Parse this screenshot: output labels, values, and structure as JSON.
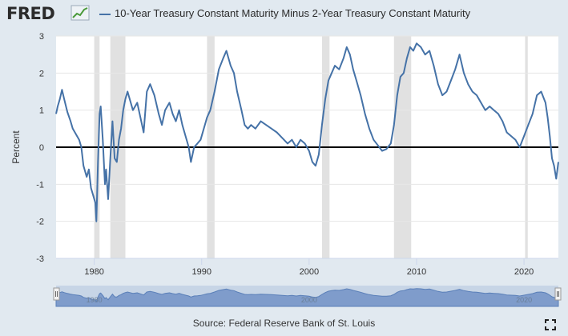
{
  "header": {
    "logo_text": "FRED",
    "series_title": "10-Year Treasury Constant Maturity Minus 2-Year Treasury Constant Maturity"
  },
  "footer": {
    "source": "Source: Federal Reserve Bank of St. Louis"
  },
  "navigator": {
    "labels": [
      "1980",
      "2000",
      "2020"
    ]
  },
  "colors": {
    "series": "#4572a7",
    "recession": "#e1e1e1",
    "background": "#e1e9f0",
    "plot_background": "#ffffff",
    "zero_line": "#000000"
  },
  "chart_data": {
    "type": "line",
    "title": "10-Year Treasury Constant Maturity Minus 2-Year Treasury Constant Maturity",
    "xlabel": "",
    "ylabel": "Percent",
    "xlim": [
      1976.45,
      2023.2
    ],
    "ylim": [
      -3,
      3
    ],
    "x_ticks": [
      1980,
      1990,
      2000,
      2010,
      2020
    ],
    "y_ticks": [
      -3,
      -2,
      -1,
      0,
      1,
      2,
      3
    ],
    "grid": "horizontal",
    "zero_line": true,
    "recessions": [
      [
        1980.0,
        1980.5
      ],
      [
        1981.5,
        1982.9
      ],
      [
        1990.5,
        1991.2
      ],
      [
        2001.2,
        2001.9
      ],
      [
        2007.9,
        2009.5
      ],
      [
        2020.1,
        2020.35
      ]
    ],
    "series": [
      {
        "x": [
          1976.45,
          1976.6,
          1976.8,
          1977.0,
          1977.2,
          1977.5,
          1977.8,
          1978.0,
          1978.3,
          1978.6,
          1978.8,
          1979.0,
          1979.3,
          1979.5,
          1979.7,
          1979.9,
          1980.1,
          1980.2,
          1980.35,
          1980.5,
          1980.6,
          1980.8,
          1981.0,
          1981.1,
          1981.3,
          1981.5,
          1981.7,
          1981.9,
          1982.1,
          1982.3,
          1982.5,
          1982.7,
          1982.9,
          1983.1,
          1983.3,
          1983.6,
          1984.0,
          1984.3,
          1984.6,
          1984.9,
          1985.2,
          1985.6,
          1986.0,
          1986.3,
          1986.6,
          1987.0,
          1987.3,
          1987.6,
          1987.9,
          1988.2,
          1988.5,
          1988.8,
          1989.0,
          1989.3,
          1989.6,
          1989.9,
          1990.2,
          1990.5,
          1990.8,
          1991.2,
          1991.6,
          1992.0,
          1992.3,
          1992.7,
          1993.0,
          1993.3,
          1993.7,
          1994.0,
          1994.3,
          1994.6,
          1995.0,
          1995.5,
          1996.0,
          1996.5,
          1997.0,
          1997.5,
          1998.0,
          1998.4,
          1998.8,
          1999.2,
          1999.6,
          2000.0,
          2000.3,
          2000.6,
          2000.9,
          2001.2,
          2001.5,
          2001.8,
          2002.1,
          2002.4,
          2002.8,
          2003.2,
          2003.5,
          2003.8,
          2004.1,
          2004.4,
          2004.8,
          2005.2,
          2005.6,
          2006.0,
          2006.4,
          2006.8,
          2007.2,
          2007.6,
          2007.9,
          2008.2,
          2008.5,
          2008.8,
          2009.1,
          2009.4,
          2009.7,
          2010.0,
          2010.4,
          2010.8,
          2011.2,
          2011.6,
          2012.0,
          2012.4,
          2012.8,
          2013.2,
          2013.6,
          2014.0,
          2014.4,
          2014.8,
          2015.2,
          2015.6,
          2016.0,
          2016.4,
          2016.8,
          2017.2,
          2017.6,
          2018.0,
          2018.4,
          2018.8,
          2019.2,
          2019.6,
          2020.0,
          2020.4,
          2020.8,
          2021.2,
          2021.6,
          2022.0,
          2022.2,
          2022.4,
          2022.6,
          2022.8,
          2023.0,
          2023.2
        ],
        "y": [
          0.9,
          1.1,
          1.3,
          1.55,
          1.3,
          0.95,
          0.7,
          0.5,
          0.35,
          0.2,
          0.0,
          -0.5,
          -0.8,
          -0.6,
          -1.1,
          -1.3,
          -1.5,
          -2.0,
          -0.4,
          0.9,
          1.1,
          0.2,
          -1.0,
          -0.6,
          -1.4,
          -0.3,
          0.7,
          -0.3,
          -0.4,
          0.2,
          0.5,
          1.0,
          1.3,
          1.5,
          1.3,
          1.0,
          1.2,
          0.8,
          0.4,
          1.5,
          1.7,
          1.4,
          0.9,
          0.6,
          1.0,
          1.2,
          0.9,
          0.7,
          1.0,
          0.6,
          0.3,
          0.0,
          -0.4,
          0.0,
          0.1,
          0.2,
          0.5,
          0.8,
          1.0,
          1.5,
          2.1,
          2.4,
          2.6,
          2.2,
          2.0,
          1.5,
          1.0,
          0.6,
          0.5,
          0.6,
          0.5,
          0.7,
          0.6,
          0.5,
          0.4,
          0.25,
          0.1,
          0.2,
          0.0,
          0.2,
          0.1,
          -0.1,
          -0.4,
          -0.5,
          -0.2,
          0.6,
          1.3,
          1.8,
          2.0,
          2.2,
          2.1,
          2.4,
          2.7,
          2.5,
          2.1,
          1.8,
          1.4,
          0.9,
          0.5,
          0.2,
          0.05,
          -0.1,
          -0.05,
          0.1,
          0.6,
          1.4,
          1.9,
          2.0,
          2.4,
          2.7,
          2.6,
          2.8,
          2.7,
          2.5,
          2.6,
          2.2,
          1.7,
          1.4,
          1.5,
          1.8,
          2.1,
          2.5,
          2.0,
          1.7,
          1.5,
          1.4,
          1.2,
          1.0,
          1.1,
          1.0,
          0.9,
          0.7,
          0.4,
          0.3,
          0.2,
          0.0,
          0.3,
          0.6,
          0.9,
          1.4,
          1.5,
          1.2,
          0.8,
          0.3,
          -0.3,
          -0.5,
          -0.85,
          -0.4
        ]
      }
    ]
  }
}
